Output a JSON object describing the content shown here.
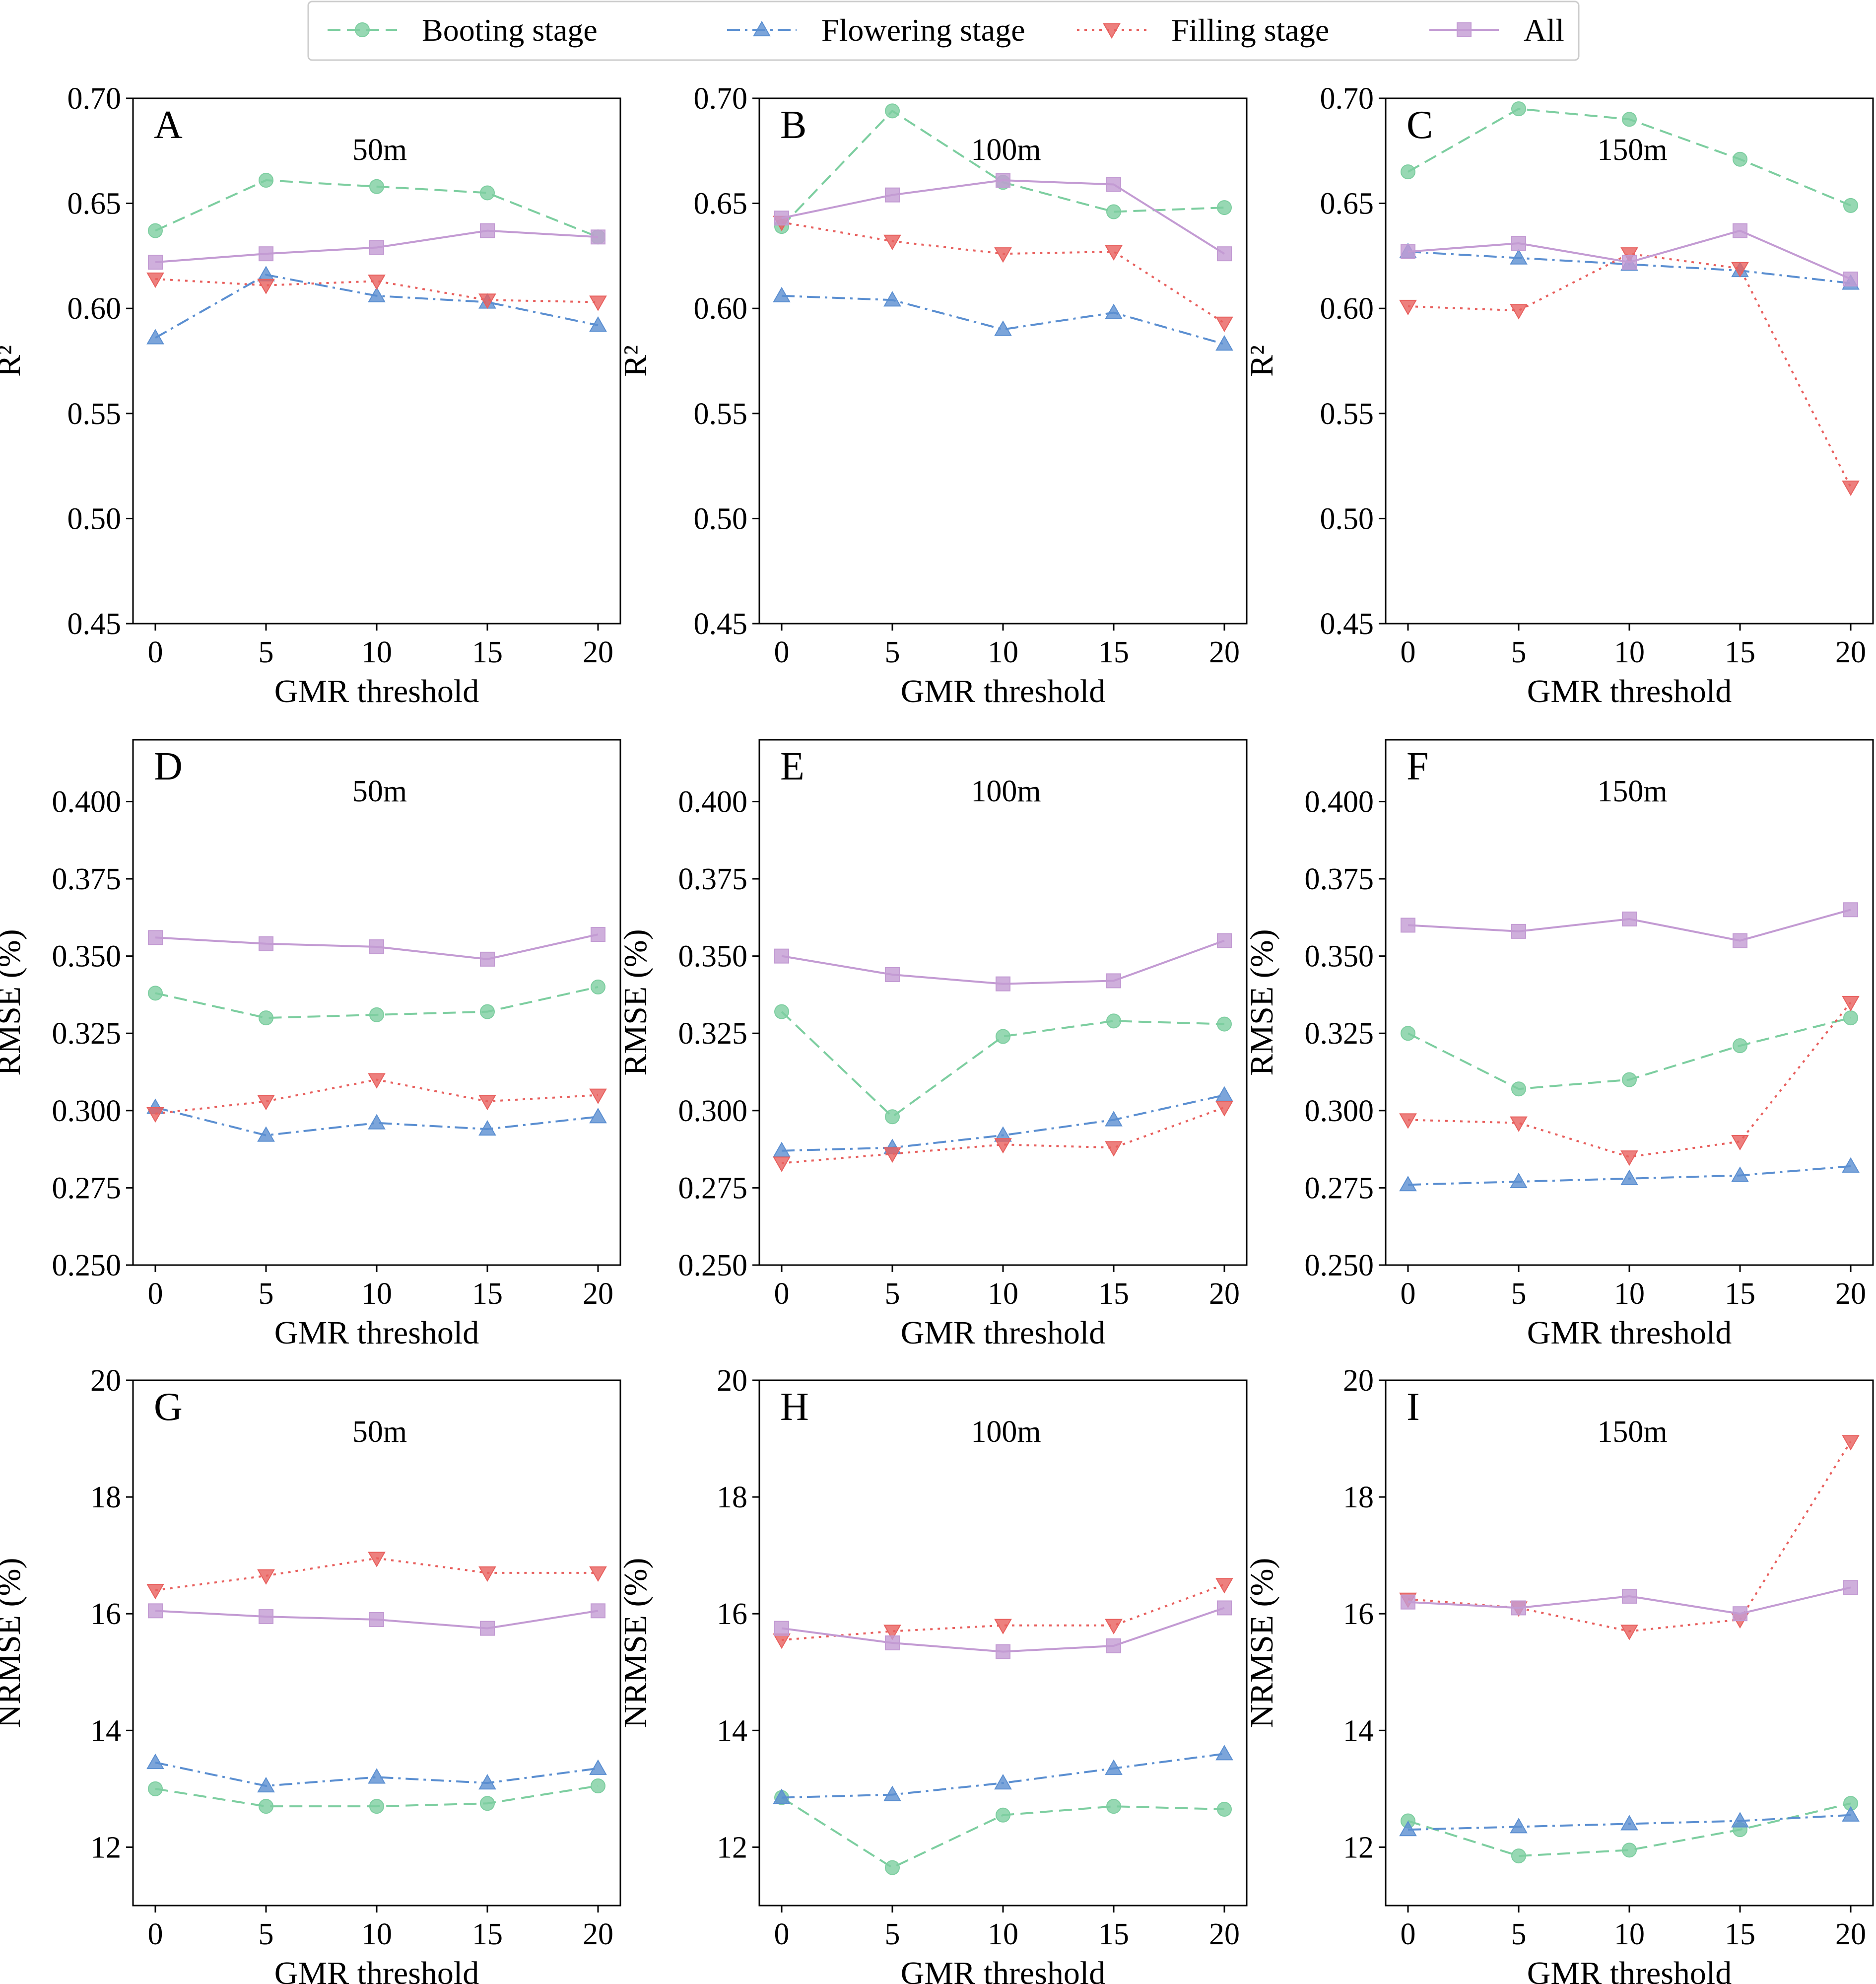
{
  "legend": {
    "entries": [
      {
        "label": "Booting stage",
        "color": "#7dcea0",
        "marker": "circle",
        "dash": "dashed"
      },
      {
        "label": "Flowering stage",
        "color": "#5b8fd1",
        "marker": "triangle-up",
        "dash": "dashdot"
      },
      {
        "label": "Filling stage",
        "color": "#e8605e",
        "marker": "triangle-down",
        "dash": "dotted"
      },
      {
        "label": "All",
        "color": "#c39bd3",
        "marker": "square",
        "dash": "solid"
      }
    ]
  },
  "chart_data": [
    {
      "type": "line",
      "panel": "A",
      "title": "50m",
      "xlabel": "GMR threshold",
      "ylabel": "R²",
      "x": [
        0,
        5,
        10,
        15,
        20
      ],
      "xticks": [
        "0",
        "5",
        "10",
        "15",
        "20"
      ],
      "ylim": [
        0.45,
        0.7
      ],
      "yticks": [
        "0.45",
        "0.50",
        "0.55",
        "0.60",
        "0.65",
        "0.70"
      ],
      "series": [
        {
          "name": "Booting stage",
          "values": [
            0.637,
            0.661,
            0.658,
            0.655,
            0.634
          ]
        },
        {
          "name": "Flowering stage",
          "values": [
            0.586,
            0.616,
            0.606,
            0.603,
            0.592
          ]
        },
        {
          "name": "Filling stage",
          "values": [
            0.614,
            0.611,
            0.613,
            0.604,
            0.603
          ]
        },
        {
          "name": "All",
          "values": [
            0.622,
            0.626,
            0.629,
            0.637,
            0.634
          ]
        }
      ]
    },
    {
      "type": "line",
      "panel": "B",
      "title": "100m",
      "xlabel": "GMR threshold",
      "ylabel": "R²",
      "x": [
        0,
        5,
        10,
        15,
        20
      ],
      "xticks": [
        "0",
        "5",
        "10",
        "15",
        "20"
      ],
      "ylim": [
        0.45,
        0.7
      ],
      "yticks": [
        "0.45",
        "0.50",
        "0.55",
        "0.60",
        "0.65",
        "0.70"
      ],
      "series": [
        {
          "name": "Booting stage",
          "values": [
            0.639,
            0.694,
            0.66,
            0.646,
            0.648
          ]
        },
        {
          "name": "Flowering stage",
          "values": [
            0.606,
            0.604,
            0.59,
            0.598,
            0.583
          ]
        },
        {
          "name": "Filling stage",
          "values": [
            0.641,
            0.632,
            0.626,
            0.627,
            0.593
          ]
        },
        {
          "name": "All",
          "values": [
            0.643,
            0.654,
            0.661,
            0.659,
            0.626
          ]
        }
      ]
    },
    {
      "type": "line",
      "panel": "C",
      "title": "150m",
      "xlabel": "GMR threshold",
      "ylabel": "R²",
      "x": [
        0,
        5,
        10,
        15,
        20
      ],
      "xticks": [
        "0",
        "5",
        "10",
        "15",
        "20"
      ],
      "ylim": [
        0.45,
        0.7
      ],
      "yticks": [
        "0.45",
        "0.50",
        "0.55",
        "0.60",
        "0.65",
        "0.70"
      ],
      "series": [
        {
          "name": "Booting stage",
          "values": [
            0.665,
            0.695,
            0.69,
            0.671,
            0.649
          ]
        },
        {
          "name": "Flowering stage",
          "values": [
            0.627,
            0.624,
            0.621,
            0.618,
            0.612
          ]
        },
        {
          "name": "Filling stage",
          "values": [
            0.601,
            0.599,
            0.626,
            0.619,
            0.515
          ]
        },
        {
          "name": "All",
          "values": [
            0.627,
            0.631,
            0.622,
            0.637,
            0.614
          ]
        }
      ]
    },
    {
      "type": "line",
      "panel": "D",
      "title": "50m",
      "xlabel": "GMR threshold",
      "ylabel": "RMSE (%)",
      "x": [
        0,
        5,
        10,
        15,
        20
      ],
      "xticks": [
        "0",
        "5",
        "10",
        "15",
        "20"
      ],
      "ylim": [
        0.25,
        0.42
      ],
      "yticks": [
        "0.250",
        "0.275",
        "0.300",
        "0.325",
        "0.350",
        "0.375",
        "0.400"
      ],
      "series": [
        {
          "name": "Booting stage",
          "values": [
            0.338,
            0.33,
            0.331,
            0.332,
            0.34
          ]
        },
        {
          "name": "Flowering stage",
          "values": [
            0.301,
            0.292,
            0.296,
            0.294,
            0.298
          ]
        },
        {
          "name": "Filling stage",
          "values": [
            0.299,
            0.303,
            0.31,
            0.303,
            0.305
          ]
        },
        {
          "name": "All",
          "values": [
            0.356,
            0.354,
            0.353,
            0.349,
            0.357
          ]
        }
      ]
    },
    {
      "type": "line",
      "panel": "E",
      "title": "100m",
      "xlabel": "GMR threshold",
      "ylabel": "RMSE (%)",
      "x": [
        0,
        5,
        10,
        15,
        20
      ],
      "xticks": [
        "0",
        "5",
        "10",
        "15",
        "20"
      ],
      "ylim": [
        0.25,
        0.42
      ],
      "yticks": [
        "0.250",
        "0.275",
        "0.300",
        "0.325",
        "0.350",
        "0.375",
        "0.400"
      ],
      "series": [
        {
          "name": "Booting stage",
          "values": [
            0.332,
            0.298,
            0.324,
            0.329,
            0.328
          ]
        },
        {
          "name": "Flowering stage",
          "values": [
            0.287,
            0.288,
            0.292,
            0.297,
            0.305
          ]
        },
        {
          "name": "Filling stage",
          "values": [
            0.283,
            0.286,
            0.289,
            0.288,
            0.301
          ]
        },
        {
          "name": "All",
          "values": [
            0.35,
            0.344,
            0.341,
            0.342,
            0.355
          ]
        }
      ]
    },
    {
      "type": "line",
      "panel": "F",
      "title": "150m",
      "xlabel": "GMR threshold",
      "ylabel": "RMSE (%)",
      "x": [
        0,
        5,
        10,
        15,
        20
      ],
      "xticks": [
        "0",
        "5",
        "10",
        "15",
        "20"
      ],
      "ylim": [
        0.25,
        0.42
      ],
      "yticks": [
        "0.250",
        "0.275",
        "0.300",
        "0.325",
        "0.350",
        "0.375",
        "0.400"
      ],
      "series": [
        {
          "name": "Booting stage",
          "values": [
            0.325,
            0.307,
            0.31,
            0.321,
            0.33
          ]
        },
        {
          "name": "Flowering stage",
          "values": [
            0.276,
            0.277,
            0.278,
            0.279,
            0.282
          ]
        },
        {
          "name": "Filling stage",
          "values": [
            0.297,
            0.296,
            0.285,
            0.29,
            0.335
          ]
        },
        {
          "name": "All",
          "values": [
            0.36,
            0.358,
            0.362,
            0.355,
            0.365
          ]
        }
      ]
    },
    {
      "type": "line",
      "panel": "G",
      "title": "50m",
      "xlabel": "GMR threshold",
      "ylabel": "NRMSE (%)",
      "x": [
        0,
        5,
        10,
        15,
        20
      ],
      "xticks": [
        "0",
        "5",
        "10",
        "15",
        "20"
      ],
      "ylim": [
        11.0,
        20.0
      ],
      "yticks": [
        "12",
        "14",
        "16",
        "18",
        "20"
      ],
      "series": [
        {
          "name": "Booting stage",
          "values": [
            13.0,
            12.7,
            12.7,
            12.75,
            13.05
          ]
        },
        {
          "name": "Flowering stage",
          "values": [
            13.45,
            13.05,
            13.2,
            13.1,
            13.35
          ]
        },
        {
          "name": "Filling stage",
          "values": [
            16.4,
            16.65,
            16.95,
            16.7,
            16.7
          ]
        },
        {
          "name": "All",
          "values": [
            16.05,
            15.95,
            15.9,
            15.75,
            16.05
          ]
        }
      ]
    },
    {
      "type": "line",
      "panel": "H",
      "title": "100m",
      "xlabel": "GMR threshold",
      "ylabel": "NRMSE (%)",
      "x": [
        0,
        5,
        10,
        15,
        20
      ],
      "xticks": [
        "0",
        "5",
        "10",
        "15",
        "20"
      ],
      "ylim": [
        11.0,
        20.0
      ],
      "yticks": [
        "12",
        "14",
        "16",
        "18",
        "20"
      ],
      "series": [
        {
          "name": "Booting stage",
          "values": [
            12.85,
            11.65,
            12.55,
            12.7,
            12.65
          ]
        },
        {
          "name": "Flowering stage",
          "values": [
            12.85,
            12.9,
            13.1,
            13.35,
            13.6
          ]
        },
        {
          "name": "Filling stage",
          "values": [
            15.55,
            15.7,
            15.8,
            15.8,
            16.5
          ]
        },
        {
          "name": "All",
          "values": [
            15.75,
            15.5,
            15.35,
            15.45,
            16.1
          ]
        }
      ]
    },
    {
      "type": "line",
      "panel": "I",
      "title": "150m",
      "xlabel": "GMR threshold",
      "ylabel": "NRMSE (%)",
      "x": [
        0,
        5,
        10,
        15,
        20
      ],
      "xticks": [
        "0",
        "5",
        "10",
        "15",
        "20"
      ],
      "ylim": [
        11.0,
        20.0
      ],
      "yticks": [
        "12",
        "14",
        "16",
        "18",
        "20"
      ],
      "series": [
        {
          "name": "Booting stage",
          "values": [
            12.45,
            11.85,
            11.95,
            12.3,
            12.75
          ]
        },
        {
          "name": "Flowering stage",
          "values": [
            12.3,
            12.35,
            12.4,
            12.45,
            12.55
          ]
        },
        {
          "name": "Filling stage",
          "values": [
            16.25,
            16.1,
            15.7,
            15.9,
            18.95
          ]
        },
        {
          "name": "All",
          "values": [
            16.2,
            16.1,
            16.3,
            16.0,
            16.45
          ]
        }
      ]
    }
  ]
}
